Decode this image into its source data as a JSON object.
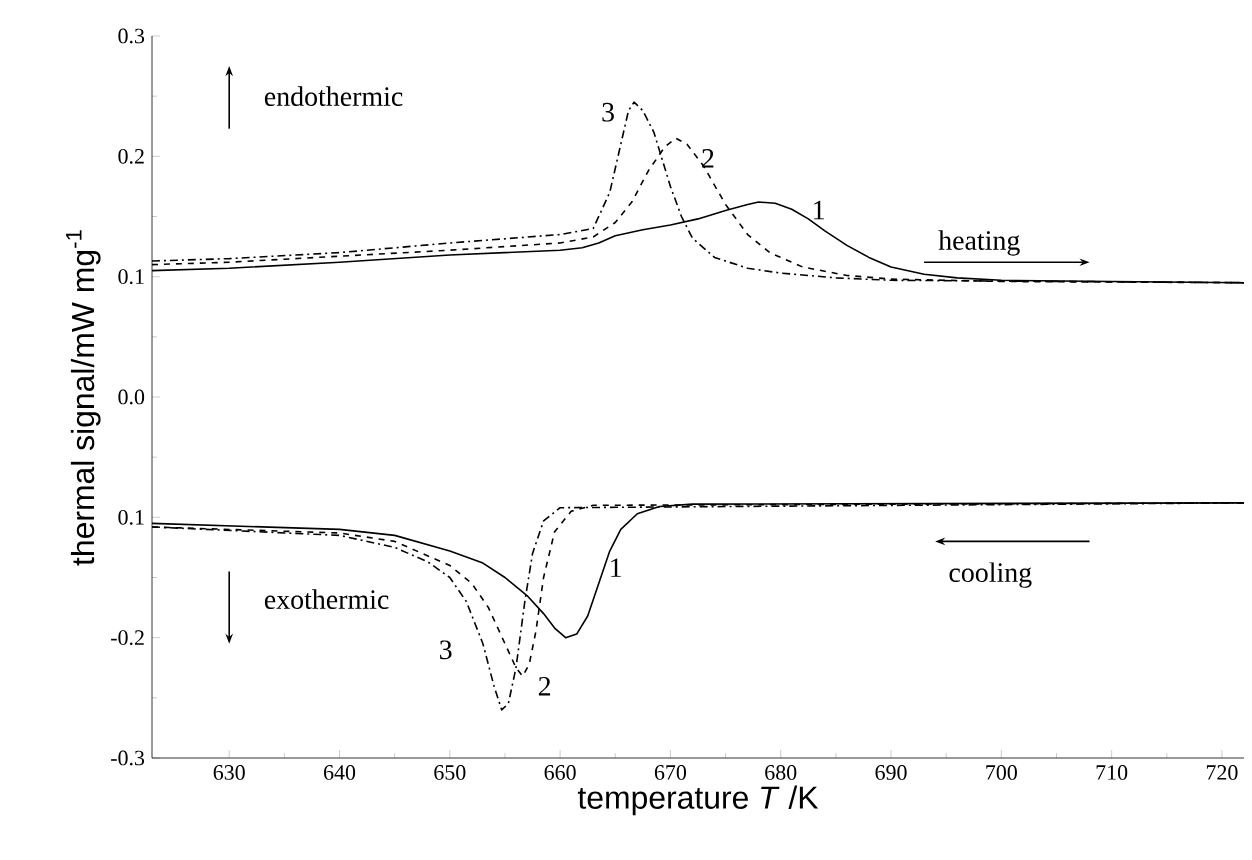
{
  "chart_data": {
    "type": "line",
    "xlabel": "temperature *T* /K",
    "ylabel": "thermal signal/mW mg$^{-1}$",
    "xlim": [
      623,
      722
    ],
    "ylim": [
      -0.3,
      0.3
    ],
    "xticks": [
      630,
      640,
      650,
      660,
      670,
      680,
      690,
      700,
      710,
      720
    ],
    "yticks": [
      {
        "value": 0.3,
        "label": "0.3"
      },
      {
        "value": 0.2,
        "label": "0.2"
      },
      {
        "value": 0.1,
        "label": "0.1"
      },
      {
        "value": 0.0,
        "label": "0.0"
      },
      {
        "value": -0.1,
        "label": "0.1"
      },
      {
        "value": -0.2,
        "label": "-0.2"
      },
      {
        "value": -0.3,
        "label": "-0.3"
      }
    ],
    "grid": false,
    "legend": false,
    "series": [
      {
        "name": "1",
        "color": "#000000",
        "line_style": "solid",
        "x": [
          623,
          630,
          640,
          650,
          660,
          662,
          663.5,
          665,
          667.5,
          670,
          672.5,
          675,
          677,
          678,
          679.5,
          681,
          682.5,
          684,
          686,
          688,
          690,
          693,
          696,
          700,
          710,
          722
        ],
        "values": [
          0.105,
          0.107,
          0.112,
          0.118,
          0.122,
          0.124,
          0.128,
          0.134,
          0.139,
          0.143,
          0.148,
          0.155,
          0.16,
          0.162,
          0.161,
          0.156,
          0.148,
          0.138,
          0.126,
          0.116,
          0.108,
          0.102,
          0.099,
          0.097,
          0.096,
          0.095
        ]
      },
      {
        "name": "2",
        "color": "#000000",
        "line_style": "dashed",
        "x": [
          623,
          630,
          640,
          650,
          660,
          663,
          665,
          666.5,
          668,
          669.5,
          670.5,
          671.5,
          673,
          675,
          677,
          679,
          682,
          686,
          690,
          700,
          722
        ],
        "values": [
          0.11,
          0.112,
          0.117,
          0.122,
          0.128,
          0.133,
          0.145,
          0.162,
          0.188,
          0.208,
          0.215,
          0.21,
          0.192,
          0.16,
          0.135,
          0.12,
          0.108,
          0.101,
          0.098,
          0.096,
          0.095
        ]
      },
      {
        "name": "3",
        "color": "#000000",
        "line_style": "dashdot",
        "x": [
          623,
          630,
          640,
          650,
          660,
          663,
          664.5,
          665.5,
          666.2,
          666.7,
          667.5,
          668.5,
          670,
          671,
          672,
          674,
          677,
          680,
          685,
          690,
          722
        ],
        "values": [
          0.113,
          0.115,
          0.12,
          0.128,
          0.135,
          0.14,
          0.17,
          0.21,
          0.238,
          0.245,
          0.238,
          0.22,
          0.175,
          0.15,
          0.132,
          0.116,
          0.107,
          0.103,
          0.099,
          0.097,
          0.095
        ]
      },
      {
        "name": "1",
        "color": "#000000",
        "line_style": "solid",
        "x": [
          623,
          640,
          645,
          650,
          653,
          655,
          657,
          658.5,
          659.5,
          660.5,
          661.5,
          662.5,
          663.5,
          664.5,
          665.5,
          667,
          669,
          672,
          722
        ],
        "values": [
          -0.105,
          -0.11,
          -0.115,
          -0.128,
          -0.138,
          -0.15,
          -0.165,
          -0.18,
          -0.192,
          -0.2,
          -0.197,
          -0.182,
          -0.155,
          -0.128,
          -0.11,
          -0.097,
          -0.091,
          -0.089,
          -0.088
        ]
      },
      {
        "name": "2",
        "color": "#000000",
        "line_style": "dashed",
        "x": [
          623,
          640,
          645,
          650,
          652,
          653.5,
          655,
          656,
          656.6,
          657.2,
          657.8,
          658.5,
          659.5,
          661,
          663,
          722
        ],
        "values": [
          -0.108,
          -0.113,
          -0.12,
          -0.14,
          -0.155,
          -0.175,
          -0.205,
          -0.225,
          -0.232,
          -0.222,
          -0.195,
          -0.15,
          -0.112,
          -0.095,
          -0.09,
          -0.088
        ]
      },
      {
        "name": "3",
        "color": "#000000",
        "line_style": "dashdot",
        "x": [
          623,
          640,
          645,
          648,
          650,
          651.5,
          653,
          654,
          654.7,
          655.3,
          656,
          656.8,
          657.5,
          658.5,
          660,
          722
        ],
        "values": [
          -0.108,
          -0.115,
          -0.125,
          -0.137,
          -0.15,
          -0.17,
          -0.205,
          -0.24,
          -0.26,
          -0.255,
          -0.225,
          -0.17,
          -0.13,
          -0.103,
          -0.092,
          -0.088
        ]
      }
    ],
    "annotations": [
      "endothermic",
      "exothermic",
      "heating",
      "cooling"
    ]
  }
}
